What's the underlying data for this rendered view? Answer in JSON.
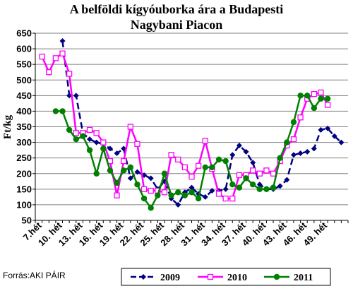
{
  "chart_data": {
    "type": "line",
    "title_line1": "A belföldi kígyóuborka ára a Budapesti",
    "title_line2": "Nagybani Piacon",
    "ylabel": "Ft/kg",
    "ylim": [
      50,
      650
    ],
    "yticks": [
      50,
      100,
      150,
      200,
      250,
      300,
      350,
      400,
      450,
      500,
      550,
      600,
      650
    ],
    "xlim": [
      6,
      52
    ],
    "xtick_labels": [
      {
        "week": 7,
        "label": "7.hét"
      },
      {
        "week": 10,
        "label": "10. hét"
      },
      {
        "week": 13,
        "label": "13. hét"
      },
      {
        "week": 16,
        "label": "16. hét"
      },
      {
        "week": 19,
        "label": "19. hét"
      },
      {
        "week": 22,
        "label": "22. hét"
      },
      {
        "week": 25,
        "label": "25. hét"
      },
      {
        "week": 28,
        "label": "28. hét"
      },
      {
        "week": 31,
        "label": "31. hét"
      },
      {
        "week": 34,
        "label": "34. hét"
      },
      {
        "week": 37,
        "label": "37. hét"
      },
      {
        "week": 40,
        "label": "40. hét"
      },
      {
        "week": 43,
        "label": "43. hét"
      },
      {
        "week": 46,
        "label": "46. hét"
      },
      {
        "week": 49,
        "label": "49. hét"
      }
    ],
    "grid": true,
    "legend": "bottom",
    "source": "Forrás:AKI PÁIR",
    "series": [
      {
        "name": "2009",
        "color": "#000080",
        "marker": "diamond",
        "dash": true,
        "points": [
          [
            10,
            625
          ],
          [
            11,
            450
          ],
          [
            12,
            450
          ],
          [
            13,
            330
          ],
          [
            14,
            310
          ],
          [
            15,
            300
          ],
          [
            16,
            295
          ],
          [
            17,
            280
          ],
          [
            18,
            265
          ],
          [
            19,
            280
          ],
          [
            20,
            185
          ],
          [
            21,
            205
          ],
          [
            22,
            195
          ],
          [
            23,
            185
          ],
          [
            24,
            150
          ],
          [
            25,
            175
          ],
          [
            26,
            120
          ],
          [
            27,
            100
          ],
          [
            28,
            140
          ],
          [
            29,
            155
          ],
          [
            30,
            135
          ],
          [
            31,
            125
          ],
          [
            32,
            145
          ],
          [
            33,
            145
          ],
          [
            34,
            150
          ],
          [
            35,
            260
          ],
          [
            36,
            290
          ],
          [
            37,
            270
          ],
          [
            38,
            235
          ],
          [
            39,
            165
          ],
          [
            40,
            150
          ],
          [
            41,
            150
          ],
          [
            42,
            160
          ],
          [
            43,
            180
          ],
          [
            44,
            260
          ],
          [
            45,
            265
          ],
          [
            46,
            270
          ],
          [
            47,
            280
          ],
          [
            48,
            340
          ],
          [
            49,
            345
          ],
          [
            50,
            320
          ],
          [
            51,
            300
          ]
        ]
      },
      {
        "name": "2010",
        "color": "#ff00ff",
        "marker": "square",
        "dash": false,
        "points": [
          [
            7,
            575
          ],
          [
            8,
            525
          ],
          [
            9,
            570
          ],
          [
            10,
            585
          ],
          [
            11,
            520
          ],
          [
            12,
            330
          ],
          [
            13,
            330
          ],
          [
            14,
            340
          ],
          [
            15,
            330
          ],
          [
            16,
            300
          ],
          [
            17,
            240
          ],
          [
            18,
            130
          ],
          [
            19,
            240
          ],
          [
            20,
            350
          ],
          [
            21,
            295
          ],
          [
            22,
            150
          ],
          [
            23,
            145
          ],
          [
            24,
            145
          ],
          [
            25,
            140
          ],
          [
            26,
            260
          ],
          [
            27,
            245
          ],
          [
            28,
            220
          ],
          [
            29,
            190
          ],
          [
            30,
            225
          ],
          [
            31,
            305
          ],
          [
            32,
            215
          ],
          [
            33,
            135
          ],
          [
            34,
            120
          ],
          [
            35,
            120
          ],
          [
            36,
            195
          ],
          [
            37,
            195
          ],
          [
            38,
            210
          ],
          [
            39,
            200
          ],
          [
            40,
            210
          ],
          [
            41,
            200
          ],
          [
            42,
            240
          ],
          [
            43,
            290
          ],
          [
            44,
            310
          ],
          [
            45,
            380
          ],
          [
            46,
            440
          ],
          [
            47,
            455
          ],
          [
            48,
            460
          ],
          [
            49,
            420
          ]
        ]
      },
      {
        "name": "2011",
        "color": "#008000",
        "marker": "circle",
        "dash": false,
        "points": [
          [
            9,
            400
          ],
          [
            10,
            400
          ],
          [
            11,
            340
          ],
          [
            12,
            310
          ],
          [
            13,
            320
          ],
          [
            14,
            275
          ],
          [
            15,
            200
          ],
          [
            16,
            280
          ],
          [
            17,
            210
          ],
          [
            18,
            170
          ],
          [
            19,
            210
          ],
          [
            20,
            220
          ],
          [
            21,
            165
          ],
          [
            22,
            120
          ],
          [
            23,
            90
          ],
          [
            24,
            130
          ],
          [
            25,
            200
          ],
          [
            26,
            130
          ],
          [
            27,
            140
          ],
          [
            28,
            130
          ],
          [
            29,
            140
          ],
          [
            30,
            120
          ],
          [
            31,
            220
          ],
          [
            32,
            220
          ],
          [
            33,
            245
          ],
          [
            34,
            240
          ],
          [
            35,
            165
          ],
          [
            36,
            155
          ],
          [
            37,
            185
          ],
          [
            38,
            165
          ],
          [
            39,
            150
          ],
          [
            40,
            150
          ],
          [
            41,
            155
          ],
          [
            42,
            250
          ],
          [
            43,
            300
          ],
          [
            44,
            365
          ],
          [
            45,
            450
          ],
          [
            46,
            450
          ],
          [
            47,
            410
          ],
          [
            48,
            440
          ],
          [
            49,
            440
          ]
        ]
      }
    ]
  }
}
